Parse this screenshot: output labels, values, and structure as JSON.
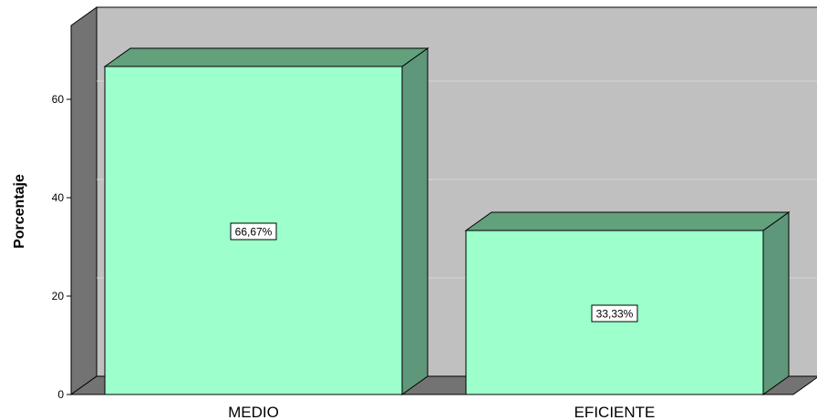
{
  "chart_data": {
    "type": "bar",
    "categories": [
      "MEDIO",
      "EFICIENTE"
    ],
    "values": [
      66.67,
      33.33
    ],
    "data_labels": [
      "66,67%",
      "33,33%"
    ],
    "ylabel": "Porcentaje",
    "yticks": [
      0,
      20,
      40,
      60
    ],
    "yticks_labels": [
      "0",
      "20",
      "40",
      "60"
    ],
    "ylim": [
      0,
      75
    ],
    "grid": true,
    "style": "3d",
    "colors": {
      "bar_front": "#9cffcc",
      "bar_top": "#63a07c",
      "bar_side": "#5e977a",
      "wall": "#c0c0c0",
      "wall_left": "#737373",
      "floor": "#737373",
      "gridline": "#d6d6d6"
    }
  }
}
